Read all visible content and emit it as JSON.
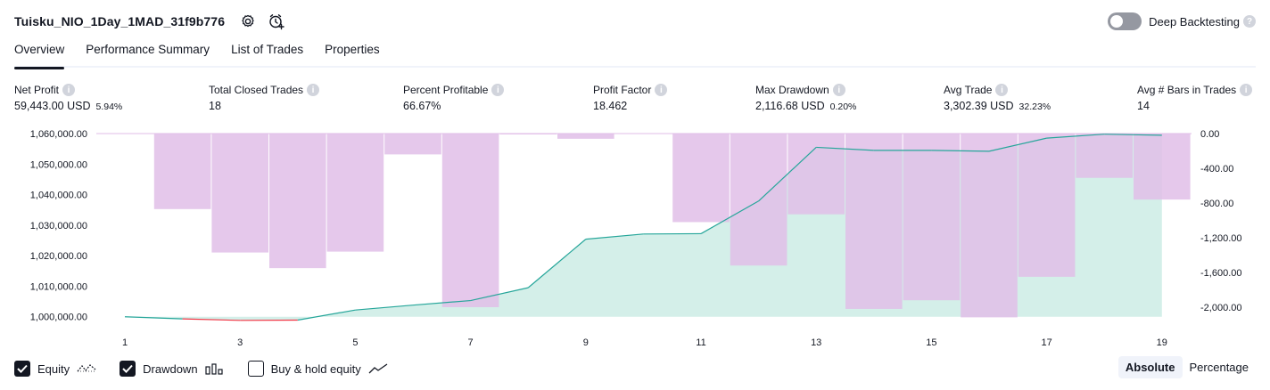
{
  "header": {
    "strategy_title": "Tuisku_NIO_1Day_1MAD_31f9b776",
    "settings_icon": "gear-icon",
    "alert_icon": "alarm-clock-plus-icon",
    "deep_backtesting_label": "Deep Backtesting",
    "deep_backtesting_enabled": false
  },
  "tabs": [
    {
      "label": "Overview",
      "active": true
    },
    {
      "label": "Performance Summary",
      "active": false
    },
    {
      "label": "List of Trades",
      "active": false
    },
    {
      "label": "Properties",
      "active": false
    }
  ],
  "stats": [
    {
      "label": "Net Profit",
      "value": "59,443.00 USD",
      "pct": "5.94%",
      "tone": "green"
    },
    {
      "label": "Total Closed Trades",
      "value": "18",
      "pct": "",
      "tone": "neutral"
    },
    {
      "label": "Percent Profitable",
      "value": "66.67%",
      "pct": "",
      "tone": "green"
    },
    {
      "label": "Profit Factor",
      "value": "18.462",
      "pct": "",
      "tone": "green"
    },
    {
      "label": "Max Drawdown",
      "value": "2,116.68 USD",
      "pct": "0.20%",
      "tone": "red"
    },
    {
      "label": "Avg Trade",
      "value": "3,302.39 USD",
      "pct": "32.23%",
      "tone": "green"
    },
    {
      "label": "Avg # Bars in Trades",
      "value": "14",
      "pct": "",
      "tone": "neutral"
    }
  ],
  "chart_data": {
    "type": "line",
    "x": [
      1,
      2,
      3,
      4,
      5,
      6,
      7,
      8,
      9,
      10,
      11,
      12,
      13,
      14,
      15,
      16,
      17,
      18,
      19
    ],
    "x_tick_labels": [
      "1",
      "3",
      "5",
      "7",
      "9",
      "11",
      "13",
      "15",
      "17",
      "19"
    ],
    "left_axis": {
      "ylim": [
        997000,
        1060000
      ],
      "tick_labels": [
        "1,060,000.00",
        "1,050,000.00",
        "1,040,000.00",
        "1,030,000.00",
        "1,020,000.00",
        "1,010,000.00",
        "1,000,000.00"
      ],
      "tick_values": [
        1060000,
        1050000,
        1040000,
        1030000,
        1020000,
        1010000,
        1000000
      ]
    },
    "right_axis": {
      "ylim": [
        -2200,
        0
      ],
      "tick_labels": [
        "0.00",
        "-400.00",
        "-800.00",
        "-1,200.00",
        "-1,600.00",
        "-2,000.00"
      ],
      "tick_values": [
        0,
        -400,
        -800,
        -1200,
        -1600,
        -2000
      ]
    },
    "series": [
      {
        "name": "Equity",
        "axis": "left",
        "color_up": "#26a69a",
        "color_down": "#f23645",
        "fill": "#d4efe9",
        "values": [
          1000000,
          999300,
          998800,
          998900,
          1002200,
          1003800,
          1005300,
          1009500,
          1025400,
          1027100,
          1027200,
          1037900,
          1055500,
          1054500,
          1054500,
          1054200,
          1058500,
          1059800,
          1059443
        ]
      },
      {
        "name": "Drawdown",
        "axis": "right",
        "type": "bar",
        "color": "#e1bee7",
        "values": [
          0,
          -870,
          -1370,
          -1550,
          -1360,
          -240,
          -2000,
          -10,
          -60,
          0,
          -1020,
          -1520,
          -930,
          -2020,
          -1920,
          -2117,
          -1650,
          -510,
          -760
        ]
      }
    ],
    "grid": false,
    "legend_position": "bottom-left"
  },
  "legend": [
    {
      "label": "Equity",
      "checked": true,
      "icon": "equity-line-icon"
    },
    {
      "label": "Drawdown",
      "checked": true,
      "icon": "drawdown-bars-icon"
    },
    {
      "label": "Buy & hold equity",
      "checked": false,
      "icon": "buy-hold-line-icon"
    }
  ],
  "mode": {
    "absolute_label": "Absolute",
    "percentage_label": "Percentage",
    "selected": "Absolute"
  }
}
